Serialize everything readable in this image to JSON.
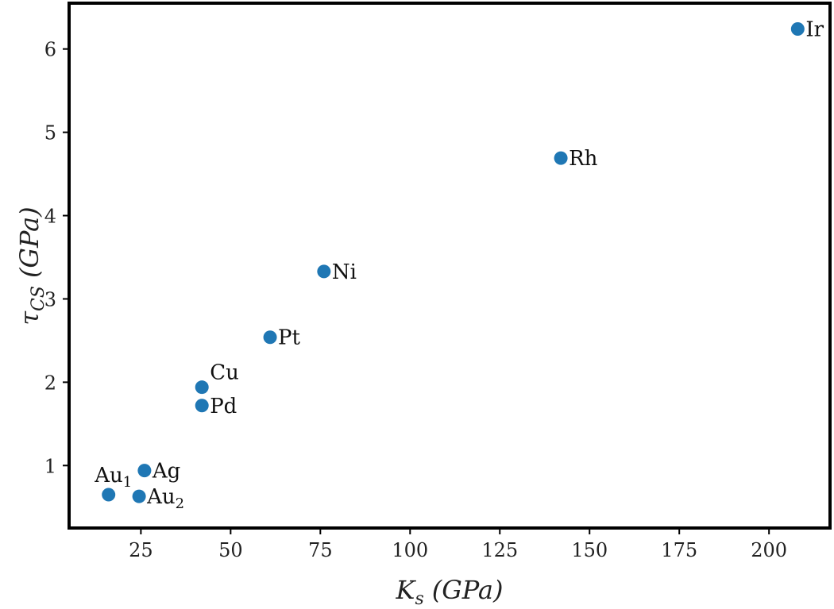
{
  "chart_data": {
    "type": "scatter",
    "title": "",
    "xlabel": {
      "main": "K",
      "sub": "s",
      "unit": "(GPa)"
    },
    "ylabel": {
      "main": "τ",
      "sub": "CS",
      "unit": "(GPa)"
    },
    "xlim": [
      5,
      217
    ],
    "ylim": [
      0.25,
      6.55
    ],
    "xticks": [
      25,
      50,
      75,
      100,
      125,
      150,
      175,
      200
    ],
    "yticks": [
      1,
      2,
      3,
      4,
      5,
      6
    ],
    "grid": false,
    "legend": "none",
    "marker_color": "#1f77b4",
    "points": [
      {
        "label": "Au",
        "sub": "1",
        "x": 16,
        "y": 0.65,
        "pos": "above"
      },
      {
        "label": "Au",
        "sub": "2",
        "x": 24.5,
        "y": 0.63,
        "pos": "right"
      },
      {
        "label": "Ag",
        "sub": "",
        "x": 26,
        "y": 0.94,
        "pos": "right"
      },
      {
        "label": "Pd",
        "sub": "",
        "x": 42,
        "y": 1.72,
        "pos": "right"
      },
      {
        "label": "Cu",
        "sub": "",
        "x": 42,
        "y": 1.94,
        "pos": "above-right"
      },
      {
        "label": "Pt",
        "sub": "",
        "x": 61,
        "y": 2.54,
        "pos": "right"
      },
      {
        "label": "Ni",
        "sub": "",
        "x": 76,
        "y": 3.33,
        "pos": "right"
      },
      {
        "label": "Rh",
        "sub": "",
        "x": 142,
        "y": 4.69,
        "pos": "right"
      },
      {
        "label": "Ir",
        "sub": "",
        "x": 208,
        "y": 6.24,
        "pos": "right"
      }
    ]
  }
}
